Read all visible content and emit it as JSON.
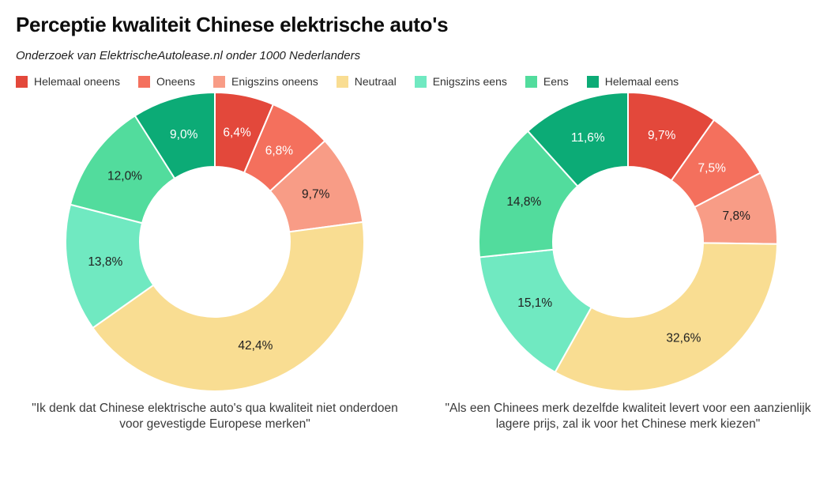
{
  "header": {
    "title": "Perceptie kwaliteit Chinese elektrische auto's",
    "subtitle": "Onderzoek van ElektrischeAutolease.nl onder 1000 Nederlanders"
  },
  "legend": {
    "items": [
      {
        "label": "Helemaal oneens",
        "color": "#e3483b"
      },
      {
        "label": "Oneens",
        "color": "#f4705d"
      },
      {
        "label": "Enigszins oneens",
        "color": "#f89c86"
      },
      {
        "label": "Neutraal",
        "color": "#f9dd92"
      },
      {
        "label": "Enigszins eens",
        "color": "#70e9c1"
      },
      {
        "label": "Eens",
        "color": "#52dc9d"
      },
      {
        "label": "Helemaal eens",
        "color": "#0cab76"
      }
    ]
  },
  "colors": {
    "background": "#ffffff",
    "palette": [
      "#e3483b",
      "#f4705d",
      "#f89c86",
      "#f9dd92",
      "#70e9c1",
      "#52dc9d",
      "#0cab76"
    ],
    "slice_label_text": [
      "#ffffff",
      "#ffffff",
      "#212121",
      "#212121",
      "#212121",
      "#212121",
      "#ffffff"
    ],
    "slice_border": "#ffffff"
  },
  "chart_data": [
    {
      "type": "pie",
      "subtype": "donut",
      "start_angle_deg": 0,
      "direction": "clockwise",
      "categories": [
        "Helemaal oneens",
        "Oneens",
        "Enigszins oneens",
        "Neutraal",
        "Enigszins eens",
        "Eens",
        "Helemaal eens"
      ],
      "values": [
        6.4,
        6.8,
        9.7,
        42.4,
        13.8,
        12.0,
        9.0
      ],
      "value_labels": [
        "6,4%",
        "6,8%",
        "9,7%",
        "42,4%",
        "13,8%",
        "12,0%",
        "9,0%"
      ],
      "caption": "\"Ik denk dat Chinese elektrische auto's qua kwaliteit niet onderdoen voor gevestigde Europese merken\""
    },
    {
      "type": "pie",
      "subtype": "donut",
      "start_angle_deg": 0,
      "direction": "clockwise",
      "categories": [
        "Helemaal oneens",
        "Oneens",
        "Enigszins oneens",
        "Neutraal",
        "Enigszins eens",
        "Eens",
        "Helemaal eens"
      ],
      "values": [
        9.7,
        7.5,
        7.8,
        32.6,
        15.1,
        14.8,
        11.6
      ],
      "value_labels": [
        "9,7%",
        "7,5%",
        "7,8%",
        "32,6%",
        "15,1%",
        "14,8%",
        "11,6%"
      ],
      "caption": "\"Als een Chinees merk dezelfde kwaliteit levert voor een aanzienlijk lagere prijs, zal ik voor het Chinese merk kiezen\""
    }
  ]
}
